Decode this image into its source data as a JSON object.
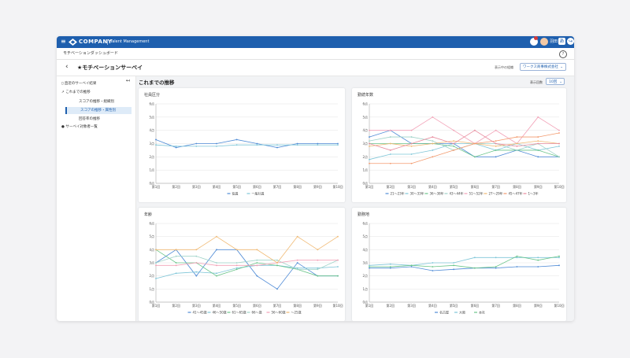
{
  "app": {
    "brand": "COMPANY",
    "product": "Talent Management",
    "user_name": "羽田",
    "user_button": "あ"
  },
  "subheader": {
    "title": "モチベーションダッシュボード"
  },
  "page": {
    "title": "★モチベーションサーベイ",
    "selector_label": "表示中の組織",
    "selector_value": "ワークス商事株式会社"
  },
  "sidebar": {
    "items": [
      {
        "label": "直近のサーベイ結果"
      },
      {
        "label": "これまでの推移"
      },
      {
        "label": "スコアの推移・組織別"
      },
      {
        "label": "スコアの推移・属性別"
      },
      {
        "label": "回答率の推移"
      },
      {
        "label": "サーベイ対象者一覧"
      }
    ]
  },
  "main": {
    "heading": "これまでの推移",
    "count_label": "表示回数",
    "count_value": "10回"
  },
  "colors": {
    "primary": "#1e5fae",
    "active_bg": "#deebf8"
  },
  "chart_data": [
    {
      "type": "line",
      "title": "社員区分",
      "categories": [
        "第1回",
        "第2回",
        "第3回",
        "第4回",
        "第5回",
        "第6回",
        "第7回",
        "第8回",
        "第9回",
        "第10回"
      ],
      "ylim": [
        0,
        6
      ],
      "yticks": [
        "0点",
        "1点",
        "2点",
        "3点",
        "4点",
        "5点",
        "6点"
      ],
      "series": [
        {
          "name": "役員",
          "color": "#4f8bd6",
          "values": [
            3.3,
            2.7,
            3.0,
            3.0,
            3.3,
            3.0,
            2.7,
            3.0,
            3.0,
            3.0
          ]
        },
        {
          "name": "一般社員",
          "color": "#7fc6d8",
          "values": [
            2.9,
            2.8,
            2.8,
            2.8,
            2.9,
            2.9,
            2.9,
            2.9,
            2.9,
            2.9
          ]
        }
      ]
    },
    {
      "type": "line",
      "title": "勤続年数",
      "categories": [
        "第1回",
        "第2回",
        "第3回",
        "第4回",
        "第5回",
        "第6回",
        "第7回",
        "第8回",
        "第9回",
        "第10回"
      ],
      "ylim": [
        0,
        6
      ],
      "yticks": [
        "0点",
        "1点",
        "2点",
        "3点",
        "4点",
        "5点",
        "6点"
      ],
      "series": [
        {
          "name": "21〜23年",
          "color": "#4f8bd6",
          "values": [
            3.5,
            4.0,
            3.0,
            3.0,
            3.0,
            2.0,
            2.0,
            2.5,
            2.0,
            2.0
          ]
        },
        {
          "name": "30〜33年",
          "color": "#7fc6d8",
          "values": [
            1.8,
            2.2,
            2.2,
            2.5,
            3.0,
            3.0,
            2.5,
            3.0,
            2.5,
            2.8
          ]
        },
        {
          "name": "36〜38年",
          "color": "#6bc58a",
          "values": [
            3.0,
            3.0,
            3.0,
            3.0,
            2.8,
            2.0,
            2.5,
            2.5,
            2.5,
            2.0
          ]
        },
        {
          "name": "43〜44年",
          "color": "#9fd3c9",
          "values": [
            3.2,
            3.5,
            3.5,
            3.2,
            2.5,
            3.0,
            3.0,
            2.5,
            3.0,
            2.0
          ]
        },
        {
          "name": "51〜52年",
          "color": "#f2a0b6",
          "values": [
            4.0,
            4.0,
            4.0,
            5.0,
            4.0,
            3.0,
            4.0,
            3.0,
            5.0,
            4.0
          ]
        },
        {
          "name": "27〜29年",
          "color": "#f0b870",
          "values": [
            2.8,
            3.0,
            2.8,
            3.0,
            3.2,
            3.0,
            2.8,
            3.0,
            3.2,
            3.0
          ]
        },
        {
          "name": "45〜47年",
          "color": "#f39a6e",
          "values": [
            1.5,
            1.5,
            1.5,
            2.0,
            2.5,
            3.0,
            3.2,
            3.5,
            3.5,
            3.8
          ]
        },
        {
          "name": "1〜3年",
          "color": "#e88a9c",
          "values": [
            3.0,
            2.5,
            3.0,
            3.5,
            3.0,
            4.0,
            3.0,
            2.8,
            3.0,
            3.0
          ]
        }
      ]
    },
    {
      "type": "line",
      "title": "年齢",
      "categories": [
        "第1回",
        "第2回",
        "第3回",
        "第4回",
        "第5回",
        "第6回",
        "第7回",
        "第8回",
        "第9回",
        "第10回"
      ],
      "ylim": [
        0,
        6
      ],
      "yticks": [
        "0点",
        "1点",
        "2点",
        "3点",
        "4点",
        "5点",
        "6点"
      ],
      "series": [
        {
          "name": "41〜45歳",
          "color": "#4f8bd6",
          "values": [
            3.0,
            4.0,
            2.0,
            4.0,
            4.0,
            2.0,
            1.0,
            3.0,
            2.0,
            2.0
          ]
        },
        {
          "name": "46〜50歳",
          "color": "#7fc6d8",
          "values": [
            1.8,
            2.2,
            2.3,
            2.2,
            2.6,
            2.8,
            2.8,
            2.6,
            2.6,
            2.7
          ]
        },
        {
          "name": "61〜65歳",
          "color": "#6bc58a",
          "values": [
            4.0,
            3.0,
            3.0,
            2.0,
            2.5,
            3.0,
            2.8,
            2.5,
            2.0,
            2.0
          ]
        },
        {
          "name": "66〜歳",
          "color": "#9fd3c9",
          "values": [
            3.0,
            3.5,
            3.5,
            3.0,
            3.0,
            3.2,
            3.2,
            2.5,
            2.5,
            3.2
          ]
        },
        {
          "name": "56〜60歳",
          "color": "#f2a0b6",
          "values": [
            2.8,
            2.8,
            3.0,
            2.8,
            2.8,
            2.8,
            3.0,
            3.2,
            3.2,
            3.2
          ]
        },
        {
          "name": "〜25歳",
          "color": "#f0b870",
          "values": [
            4.0,
            4.0,
            4.0,
            5.0,
            4.0,
            4.0,
            3.0,
            5.0,
            4.0,
            5.0
          ]
        }
      ]
    },
    {
      "type": "line",
      "title": "勤務地",
      "categories": [
        "第1回",
        "第2回",
        "第3回",
        "第4回",
        "第5回",
        "第6回",
        "第7回",
        "第8回",
        "第9回",
        "第10回"
      ],
      "ylim": [
        0,
        6
      ],
      "yticks": [
        "0点",
        "1点",
        "2点",
        "3点",
        "4点",
        "5点",
        "6点"
      ],
      "series": [
        {
          "name": "名古屋",
          "color": "#4f8bd6",
          "values": [
            2.6,
            2.6,
            2.7,
            2.4,
            2.5,
            2.6,
            2.6,
            2.7,
            2.7,
            2.8
          ]
        },
        {
          "name": "大阪",
          "color": "#7fc6d8",
          "values": [
            2.8,
            2.9,
            2.8,
            3.0,
            3.0,
            3.4,
            3.4,
            3.4,
            3.4,
            3.4
          ]
        },
        {
          "name": "本社",
          "color": "#6bc58a",
          "values": [
            2.7,
            2.7,
            2.8,
            2.7,
            2.8,
            2.6,
            2.7,
            3.5,
            3.2,
            3.5
          ]
        }
      ]
    }
  ]
}
